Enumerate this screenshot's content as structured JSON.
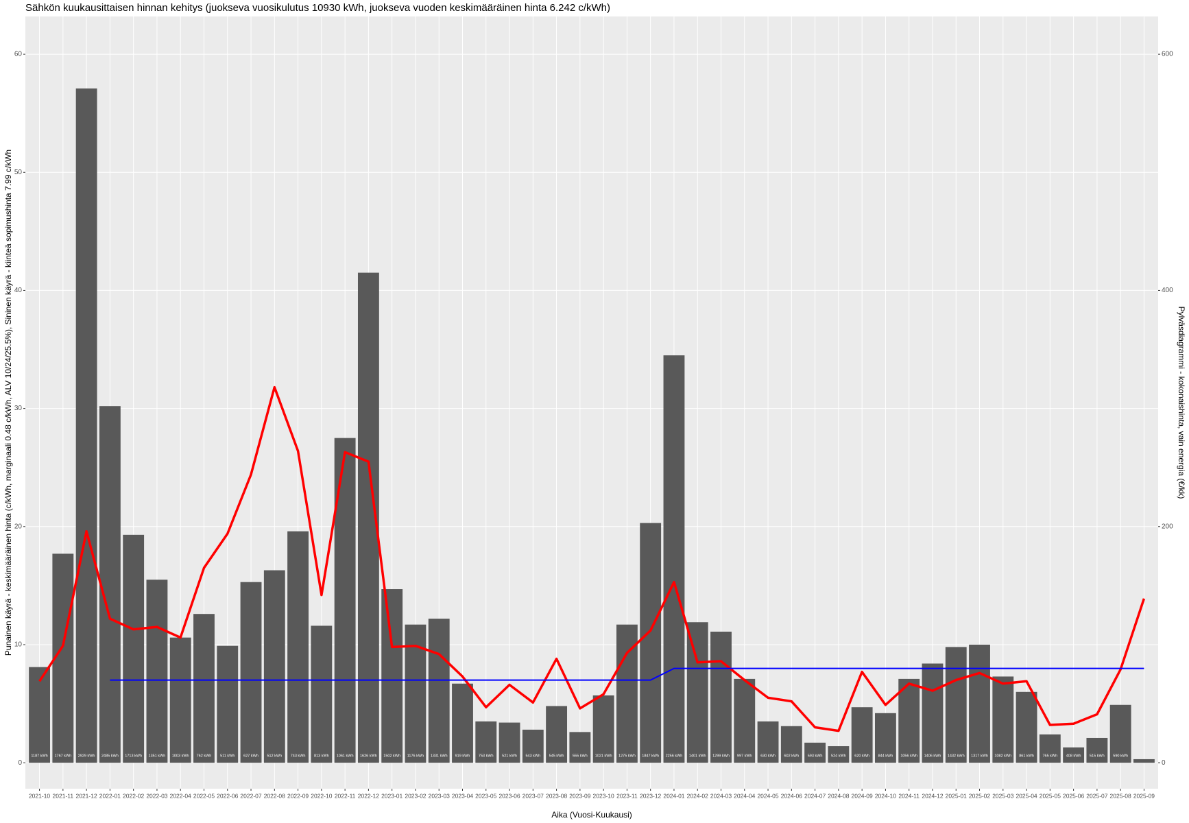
{
  "chart_data": {
    "type": "bar",
    "title": "Sähkön kuukausittaisen hinnan kehitys (juokseva vuosikulutus 10930 kWh, juokseva vuoden keskimääräinen hinta 6.242 c/kWh)",
    "x_label": "Aika (Vuosi-Kuukausi)",
    "y_label": "Punainen käyrä - keskimääräinen hinta (c/kWh, marginaali 0.48 c/kWh, ALV 10/24/25.5%), Sininen käyrä - kiinteä sopimushinta 7.99  c/kWh",
    "y2_label": "Pylväsdiagrammi - kokonaishinta, vain energia (€/kk)",
    "categories": [
      "2021-10",
      "2021-11",
      "2021-12",
      "2022-01",
      "2022-02",
      "2022-03",
      "2022-04",
      "2022-05",
      "2022-06",
      "2022-07",
      "2022-08",
      "2022-09",
      "2022-10",
      "2022-11",
      "2022-12",
      "2023-01",
      "2023-02",
      "2023-03",
      "2023-04",
      "2023-05",
      "2023-06",
      "2023-07",
      "2023-08",
      "2023-09",
      "2023-10",
      "2023-11",
      "2023-12",
      "2024-01",
      "2024-02",
      "2024-03",
      "2024-04",
      "2024-05",
      "2024-06",
      "2024-07",
      "2024-08",
      "2024-09",
      "2024-10",
      "2024-11",
      "2024-12",
      "2025-01",
      "2025-02",
      "2025-03",
      "2025-04",
      "2025-05",
      "2025-06",
      "2025-07",
      "2025-08",
      "2025-09"
    ],
    "series": [
      {
        "type": "bar",
        "axis": "y2",
        "color": "#595959",
        "values": [
          81,
          177,
          571,
          302,
          193,
          155,
          106,
          126,
          99,
          153,
          163,
          196,
          116,
          275,
          415,
          147,
          117,
          122,
          67,
          35,
          34,
          28,
          48,
          26,
          57,
          117,
          203,
          345,
          119,
          111,
          71,
          35,
          31,
          17,
          14,
          47,
          42,
          71,
          84,
          98,
          100,
          73,
          60,
          24,
          13,
          21,
          49,
          3
        ],
        "bar_labels": [
          "1187 kWh",
          "1767 kWh",
          "2929 kWh",
          "2485 kWh",
          "1713 kWh",
          "1351 kWh",
          "1003 kWh",
          "762 kWh",
          "511 kWh",
          "627 kWh",
          "512 kWh",
          "743 kWh",
          "813 kWh",
          "1061 kWh",
          "1626 kWh",
          "1502 kWh",
          "1176 kWh",
          "1331 kWh",
          "919 kWh",
          "753 kWh",
          "521 kWh",
          "543 kWh",
          "545 kWh",
          "555 kWh",
          "1021 kWh",
          "1275 kWh",
          "1847 kWh",
          "2256 kWh",
          "1401 kWh",
          "1299 kWh",
          "997 kWh",
          "630 kWh",
          "602 kWh",
          "593 kWh",
          "524 kWh",
          "620 kWh",
          "844 kWh",
          "1056 kWh",
          "1406 kWh",
          "1432 kWh",
          "1317 kWh",
          "1082 kWh",
          "861 kWh",
          "765 kWh",
          "408 kWh",
          "515 kWh",
          "590 kWh",
          null
        ]
      },
      {
        "type": "line",
        "axis": "y",
        "color": "#ff0000",
        "width": 3.5,
        "values": [
          6.9,
          9.9,
          19.6,
          12.2,
          11.3,
          11.5,
          10.6,
          16.5,
          19.4,
          24.4,
          31.8,
          26.4,
          14.2,
          26.3,
          25.5,
          9.8,
          9.9,
          9.2,
          7.3,
          4.7,
          6.6,
          5.1,
          8.8,
          4.6,
          5.8,
          9.3,
          11.2,
          15.3,
          8.5,
          8.6,
          7.0,
          5.5,
          5.2,
          3.0,
          2.7,
          7.7,
          4.9,
          6.7,
          6.1,
          7.0,
          7.6,
          6.7,
          6.9,
          3.2,
          3.3,
          4.1,
          7.9,
          13.9
        ]
      },
      {
        "type": "line",
        "axis": "y",
        "color": "#0000ff",
        "width": 2,
        "values": [
          null,
          null,
          null,
          7.0,
          7.0,
          7.0,
          7.0,
          7.0,
          7.0,
          7.0,
          7.0,
          7.0,
          7.0,
          7.0,
          7.0,
          7.0,
          7.0,
          7.0,
          7.0,
          7.0,
          7.0,
          7.0,
          7.0,
          7.0,
          7.0,
          7.0,
          7.0,
          7.99,
          7.99,
          7.99,
          7.99,
          7.99,
          7.99,
          7.99,
          7.99,
          7.99,
          7.99,
          7.99,
          7.99,
          7.99,
          7.99,
          7.99,
          7.99,
          7.99,
          7.99,
          7.99,
          7.99,
          7.99
        ]
      }
    ],
    "ylim": [
      -2.2,
      63.2
    ],
    "yticks": [
      0,
      10,
      20,
      30,
      40,
      50,
      60
    ],
    "y2lim": [
      -22,
      632
    ],
    "y2ticks": [
      0,
      200,
      400,
      600
    ],
    "grid": true
  }
}
